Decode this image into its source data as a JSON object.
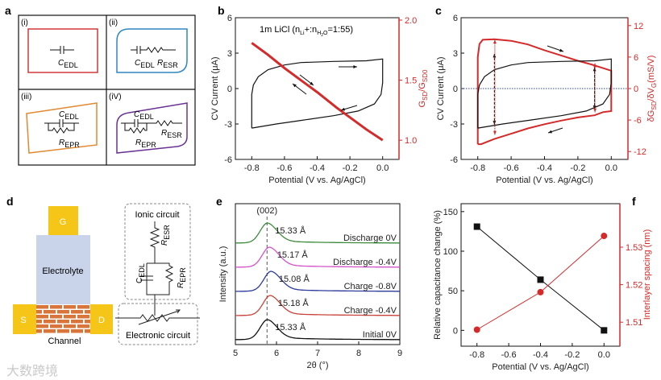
{
  "panel_labels": {
    "a": "a",
    "b": "b",
    "c": "c",
    "d": "d",
    "e": "e",
    "f": "f"
  },
  "panel_a": {
    "cells": [
      {
        "label": "(i)",
        "color": "#d0393a",
        "components": [
          {
            "main": "C",
            "sub": "EDL"
          }
        ]
      },
      {
        "label": "(ii)",
        "color": "#2f86c4",
        "components": [
          {
            "main": "C",
            "sub": "EDL"
          },
          {
            "main": "R",
            "sub": "ESR"
          }
        ]
      },
      {
        "label": "(iii)",
        "color": "#e08a33",
        "components": [
          {
            "main": "C",
            "sub": "EDL"
          },
          {
            "main": "R",
            "sub": "EPR"
          }
        ]
      },
      {
        "label": "(iV)",
        "color": "#6a3294",
        "components": [
          {
            "main": "C",
            "sub": "EDL"
          },
          {
            "main": "R",
            "sub": "EPR"
          },
          {
            "main": "R",
            "sub": "ESR"
          }
        ]
      }
    ]
  },
  "panel_d": {
    "gate": "G",
    "electrolyte": "Electrolyte",
    "source": "S",
    "drain": "D",
    "channel": "Channel",
    "ionic_circuit": "Ionic circuit",
    "electronic_circuit": "Electronic circuit",
    "r_esr": {
      "main": "R",
      "sub": "ESR"
    },
    "c_edl": {
      "main": "C",
      "sub": "EDL"
    },
    "r_epr": {
      "main": "R",
      "sub": "EPR"
    },
    "colors": {
      "electrode": "#f5c518",
      "electrolyte": "#c9d3ea",
      "brick": "#d9743a"
    }
  },
  "watermark": "大数跨境",
  "chart_data": [
    {
      "id": "b",
      "type": "line",
      "annotation": {
        "pre": "1m LiCl (n",
        "s1": "Li",
        "mid": "+:n",
        "s2": "H",
        "s3": "2",
        "s4": "O",
        "post": "=1:55)"
      },
      "xlabel": "Potential (V vs. Ag/AgCl)",
      "ylabel": "CV Current (μA)",
      "y2label": {
        "a": "G",
        "as": "SD",
        "b": "/G",
        "bs": "SD0"
      },
      "xlim": [
        -0.9,
        0.1
      ],
      "ylim": [
        -6,
        6
      ],
      "y2lim": [
        0.84,
        2.02
      ],
      "xticks": [
        "-0.8",
        "-0.6",
        "-0.4",
        "-0.2",
        "0.0"
      ],
      "yticks": [
        "-6",
        "-3",
        "0",
        "3",
        "6"
      ],
      "y2ticks": [
        "1.0",
        "1.5",
        "2.0"
      ],
      "series": [
        {
          "name": "CV current",
          "axis": "left",
          "color": "#111111",
          "points": [
            [
              -0.8,
              -3.35
            ],
            [
              -0.8,
              -0.5
            ],
            [
              -0.79,
              0.3
            ],
            [
              -0.76,
              1.0
            ],
            [
              -0.7,
              1.6
            ],
            [
              -0.6,
              2.0
            ],
            [
              -0.5,
              2.2
            ],
            [
              -0.3,
              2.3
            ],
            [
              -0.1,
              2.35
            ],
            [
              0,
              2.5
            ],
            [
              0,
              0.5
            ],
            [
              -0.01,
              -0.5
            ],
            [
              -0.05,
              -1.3
            ],
            [
              -0.15,
              -1.9
            ],
            [
              -0.3,
              -2.3
            ],
            [
              -0.5,
              -2.7
            ],
            [
              -0.65,
              -3.0
            ],
            [
              -0.8,
              -3.35
            ]
          ]
        },
        {
          "name": "GSD/GSD0",
          "axis": "right",
          "color": "#d42a2a",
          "points": [
            [
              -0.8,
              1.81
            ],
            [
              -0.7,
              1.71
            ],
            [
              -0.6,
              1.6
            ],
            [
              -0.5,
              1.5
            ],
            [
              -0.4,
              1.4
            ],
            [
              -0.28,
              1.27
            ],
            [
              -0.2,
              1.19
            ],
            [
              -0.1,
              1.09
            ],
            [
              0,
              1.0
            ]
          ]
        }
      ]
    },
    {
      "id": "c",
      "type": "line",
      "xlabel": "Potential (V vs. Ag/AgCl)",
      "ylabel": "CV Current (μA)",
      "y2label": {
        "a": "δG",
        "as": "SD",
        "b": "/δV",
        "bs": "G",
        "c": "(mS/V)"
      },
      "xlim": [
        -0.9,
        0.1
      ],
      "ylim": [
        -6,
        6
      ],
      "y2lim": [
        -13.5,
        13.5
      ],
      "xticks": [
        "-0.8",
        "-0.6",
        "-0.4",
        "-0.2",
        "0.0"
      ],
      "yticks": [
        "-6",
        "-3",
        "0",
        "3",
        "6"
      ],
      "y2ticks": [
        "-12",
        "-6",
        "0",
        "6",
        "12"
      ],
      "series": [
        {
          "name": "CV current",
          "axis": "left",
          "color": "#111111",
          "points": [
            [
              -0.8,
              -3.35
            ],
            [
              -0.8,
              -0.5
            ],
            [
              -0.79,
              0.3
            ],
            [
              -0.76,
              1.0
            ],
            [
              -0.7,
              1.6
            ],
            [
              -0.6,
              2.0
            ],
            [
              -0.5,
              2.2
            ],
            [
              -0.3,
              2.3
            ],
            [
              -0.1,
              2.35
            ],
            [
              0,
              2.5
            ],
            [
              0,
              0.5
            ],
            [
              -0.01,
              -0.5
            ],
            [
              -0.05,
              -1.3
            ],
            [
              -0.15,
              -1.9
            ],
            [
              -0.3,
              -2.3
            ],
            [
              -0.5,
              -2.7
            ],
            [
              -0.65,
              -3.0
            ],
            [
              -0.8,
              -3.35
            ]
          ]
        },
        {
          "name": "dGSD/dVG",
          "axis": "right",
          "color": "#d42a2a",
          "points": [
            [
              -0.8,
              -10.6
            ],
            [
              -0.8,
              -4
            ],
            [
              -0.8,
              6
            ],
            [
              -0.79,
              8.5
            ],
            [
              -0.77,
              9.3
            ],
            [
              -0.7,
              9.4
            ],
            [
              -0.6,
              9.1
            ],
            [
              -0.5,
              8.4
            ],
            [
              -0.4,
              7.3
            ],
            [
              -0.3,
              6.3
            ],
            [
              -0.2,
              5.3
            ],
            [
              -0.12,
              4.6
            ],
            [
              -0.05,
              3.9
            ],
            [
              0,
              3.4
            ],
            [
              0,
              -4.3
            ],
            [
              -0.05,
              -4.5
            ],
            [
              -0.1,
              -5.1
            ],
            [
              -0.2,
              -5.5
            ],
            [
              -0.3,
              -6.1
            ],
            [
              -0.4,
              -6.8
            ],
            [
              -0.5,
              -7.6
            ],
            [
              -0.6,
              -8.6
            ],
            [
              -0.7,
              -9.6
            ],
            [
              -0.78,
              -10.6
            ],
            [
              -0.8,
              -10.6
            ]
          ]
        }
      ]
    },
    {
      "id": "e",
      "type": "line",
      "xlabel": "2θ (°)",
      "ylabel": "Intensity (a.u.)",
      "xlim": [
        5,
        9
      ],
      "xticks": [
        "5",
        "6",
        "7",
        "8",
        "9"
      ],
      "reference_peak": {
        "label": "(002)",
        "x": 5.77
      },
      "series": [
        {
          "name": "Initial 0V",
          "peak": 5.77,
          "d_spacing": "15.33 Å",
          "offset": 0,
          "color": "#111111"
        },
        {
          "name": "Charge -0.4V",
          "peak": 5.84,
          "d_spacing": "15.18 Å",
          "offset": 1,
          "color": "#c8413a"
        },
        {
          "name": "Charge -0.8V",
          "peak": 5.86,
          "d_spacing": "15.08 Å",
          "offset": 2,
          "color": "#2b3a9a"
        },
        {
          "name": "Discharge -0.4V",
          "peak": 5.82,
          "d_spacing": "15.17 Å",
          "offset": 3,
          "color": "#d452c9"
        },
        {
          "name": "Discharge 0V",
          "peak": 5.77,
          "d_spacing": "15.33 Å",
          "offset": 4,
          "color": "#3d8a3d"
        }
      ]
    },
    {
      "id": "f",
      "type": "line",
      "xlabel": "Potential (V vs. Ag/AgCl)",
      "ylabel": "Relative capacitance change (%)",
      "y2label": "Interlayer spacing (nm)",
      "xlim": [
        -0.9,
        0.1
      ],
      "ylim": [
        -20,
        160
      ],
      "y2lim": [
        1.5036,
        1.5416
      ],
      "xticks": [
        "-0.8",
        "-0.6",
        "-0.4",
        "-0.2",
        "0.0"
      ],
      "yticks": [
        "0",
        "50",
        "100",
        "150"
      ],
      "y2ticks": [
        "1.51",
        "1.52",
        "1.53"
      ],
      "x": [
        -0.8,
        -0.4,
        0.0
      ],
      "series": [
        {
          "name": "Relative capacitance change",
          "axis": "left",
          "color": "#111111",
          "marker": "square",
          "values": [
            131,
            64,
            0
          ]
        },
        {
          "name": "Interlayer spacing",
          "axis": "right",
          "color": "#d42a2a",
          "marker": "circle",
          "values": [
            1.508,
            1.518,
            1.533
          ]
        }
      ]
    }
  ]
}
